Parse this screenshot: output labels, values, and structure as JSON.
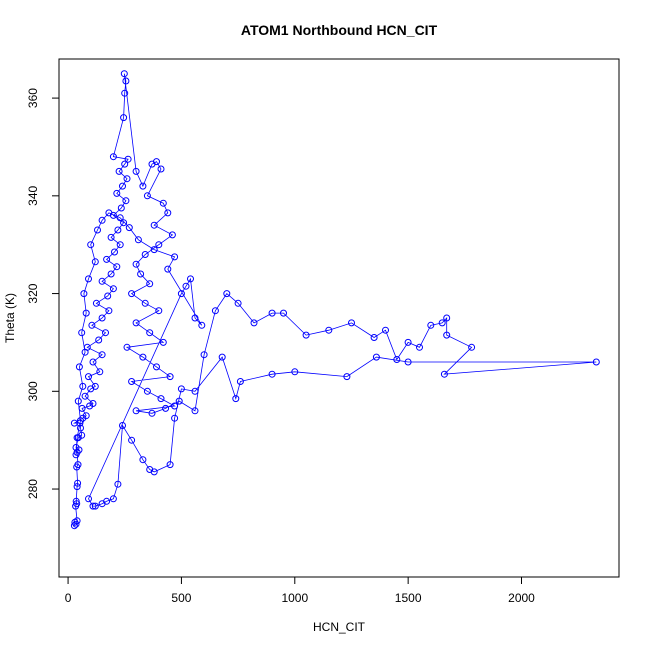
{
  "chart_data": {
    "type": "line",
    "title": "ATOM1 Northbound HCN_CIT",
    "xlabel": "HCN_CIT",
    "ylabel": "Theta (K)",
    "xlim": [
      -40,
      2430
    ],
    "ylim": [
      262,
      368
    ],
    "xticks": [
      0,
      500,
      1000,
      1500,
      2000
    ],
    "yticks": [
      280,
      300,
      320,
      340,
      360
    ],
    "grid": false,
    "color": "#0000ff",
    "markers": "open-circle",
    "points": [
      [
        28,
        272.5
      ],
      [
        30,
        273.2
      ],
      [
        35,
        272.8
      ],
      [
        40,
        273.5
      ],
      [
        33,
        276.5
      ],
      [
        38,
        277.0
      ],
      [
        36,
        277.5
      ],
      [
        40,
        280.5
      ],
      [
        42,
        281.2
      ],
      [
        38,
        284.5
      ],
      [
        44,
        285.0
      ],
      [
        40,
        287.5
      ],
      [
        48,
        288.0
      ],
      [
        35,
        288.5
      ],
      [
        45,
        290.5
      ],
      [
        60,
        291.0
      ],
      [
        55,
        292.5
      ],
      [
        52,
        293.5
      ],
      [
        28,
        293.5
      ],
      [
        65,
        294.5
      ],
      [
        80,
        295.0
      ],
      [
        62,
        296.5
      ],
      [
        95,
        297.0
      ],
      [
        110,
        297.5
      ],
      [
        75,
        299.0
      ],
      [
        100,
        300.5
      ],
      [
        120,
        301.0
      ],
      [
        90,
        303.0
      ],
      [
        140,
        304.0
      ],
      [
        110,
        306.0
      ],
      [
        150,
        307.5
      ],
      [
        85,
        309.0
      ],
      [
        135,
        310.5
      ],
      [
        165,
        312.0
      ],
      [
        105,
        313.5
      ],
      [
        150,
        315.0
      ],
      [
        180,
        316.5
      ],
      [
        125,
        318.0
      ],
      [
        175,
        319.5
      ],
      [
        200,
        321.0
      ],
      [
        150,
        322.5
      ],
      [
        190,
        324.0
      ],
      [
        215,
        325.5
      ],
      [
        170,
        327.0
      ],
      [
        205,
        328.5
      ],
      [
        230,
        330.0
      ],
      [
        190,
        331.5
      ],
      [
        220,
        333.0
      ],
      [
        245,
        334.5
      ],
      [
        200,
        336.0
      ],
      [
        235,
        337.5
      ],
      [
        255,
        339.0
      ],
      [
        215,
        340.5
      ],
      [
        240,
        342.0
      ],
      [
        260,
        343.5
      ],
      [
        225,
        345.0
      ],
      [
        250,
        346.5
      ],
      [
        265,
        347.5
      ],
      [
        200,
        348.0
      ],
      [
        245,
        356.0
      ],
      [
        250,
        361.0
      ],
      [
        255,
        363.5
      ],
      [
        248,
        365.0
      ],
      [
        300,
        345.0
      ],
      [
        330,
        342.0
      ],
      [
        370,
        346.5
      ],
      [
        390,
        347.0
      ],
      [
        410,
        345.5
      ],
      [
        350,
        340.0
      ],
      [
        420,
        338.5
      ],
      [
        440,
        336.5
      ],
      [
        380,
        334.0
      ],
      [
        460,
        332.0
      ],
      [
        400,
        330.0
      ],
      [
        340,
        328.0
      ],
      [
        300,
        326.0
      ],
      [
        320,
        324.0
      ],
      [
        360,
        322.0
      ],
      [
        280,
        320.0
      ],
      [
        340,
        318.0
      ],
      [
        400,
        316.5
      ],
      [
        300,
        314.0
      ],
      [
        360,
        312.0
      ],
      [
        420,
        310.0
      ],
      [
        260,
        309.0
      ],
      [
        330,
        307.0
      ],
      [
        390,
        305.0
      ],
      [
        450,
        303.0
      ],
      [
        280,
        302.0
      ],
      [
        350,
        300.0
      ],
      [
        410,
        298.5
      ],
      [
        470,
        297.0
      ],
      [
        300,
        296.0
      ],
      [
        370,
        295.5
      ],
      [
        430,
        296.5
      ],
      [
        490,
        298.0
      ],
      [
        560,
        296.0
      ],
      [
        600,
        307.5
      ],
      [
        650,
        316.5
      ],
      [
        700,
        320.0
      ],
      [
        750,
        318.0
      ],
      [
        820,
        314.0
      ],
      [
        900,
        316.0
      ],
      [
        950,
        316.0
      ],
      [
        1050,
        311.5
      ],
      [
        1150,
        312.5
      ],
      [
        1250,
        314.0
      ],
      [
        1350,
        311.0
      ],
      [
        1400,
        312.5
      ],
      [
        1450,
        306.5
      ],
      [
        1500,
        310.0
      ],
      [
        1550,
        309.0
      ],
      [
        1600,
        313.5
      ],
      [
        1650,
        314.0
      ],
      [
        1670,
        315.0
      ],
      [
        1670,
        311.5
      ],
      [
        1780,
        309.0
      ],
      [
        1660,
        303.5
      ],
      [
        2330,
        306.0
      ],
      [
        1500,
        306.0
      ],
      [
        1360,
        307.0
      ],
      [
        1230,
        303.0
      ],
      [
        1000,
        304.0
      ],
      [
        900,
        303.5
      ],
      [
        760,
        302.0
      ],
      [
        740,
        298.5
      ],
      [
        680,
        307.0
      ],
      [
        560,
        300.0
      ],
      [
        500,
        300.5
      ],
      [
        470,
        294.5
      ],
      [
        450,
        285.0
      ],
      [
        380,
        283.5
      ],
      [
        360,
        284.0
      ],
      [
        330,
        286.0
      ],
      [
        280,
        290.0
      ],
      [
        240,
        293.0
      ],
      [
        220,
        281.0
      ],
      [
        200,
        278.0
      ],
      [
        170,
        277.5
      ],
      [
        150,
        277.0
      ],
      [
        120,
        276.5
      ],
      [
        110,
        276.5
      ],
      [
        90,
        278.0
      ],
      [
        500,
        320.0
      ],
      [
        520,
        321.5
      ],
      [
        540,
        323.0
      ],
      [
        560,
        315.0
      ],
      [
        590,
        313.5
      ],
      [
        440,
        325.0
      ],
      [
        470,
        327.5
      ],
      [
        380,
        329.0
      ],
      [
        310,
        331.0
      ],
      [
        270,
        333.5
      ],
      [
        230,
        335.5
      ],
      [
        180,
        336.5
      ],
      [
        150,
        335.0
      ],
      [
        130,
        333.0
      ],
      [
        100,
        330.0
      ],
      [
        120,
        326.5
      ],
      [
        90,
        323.0
      ],
      [
        70,
        320.0
      ],
      [
        80,
        316.0
      ],
      [
        60,
        312.0
      ],
      [
        75,
        308.0
      ],
      [
        50,
        305.0
      ],
      [
        65,
        301.0
      ],
      [
        45,
        298.0
      ],
      [
        55,
        294.0
      ],
      [
        40,
        290.5
      ],
      [
        35,
        287.0
      ]
    ]
  }
}
